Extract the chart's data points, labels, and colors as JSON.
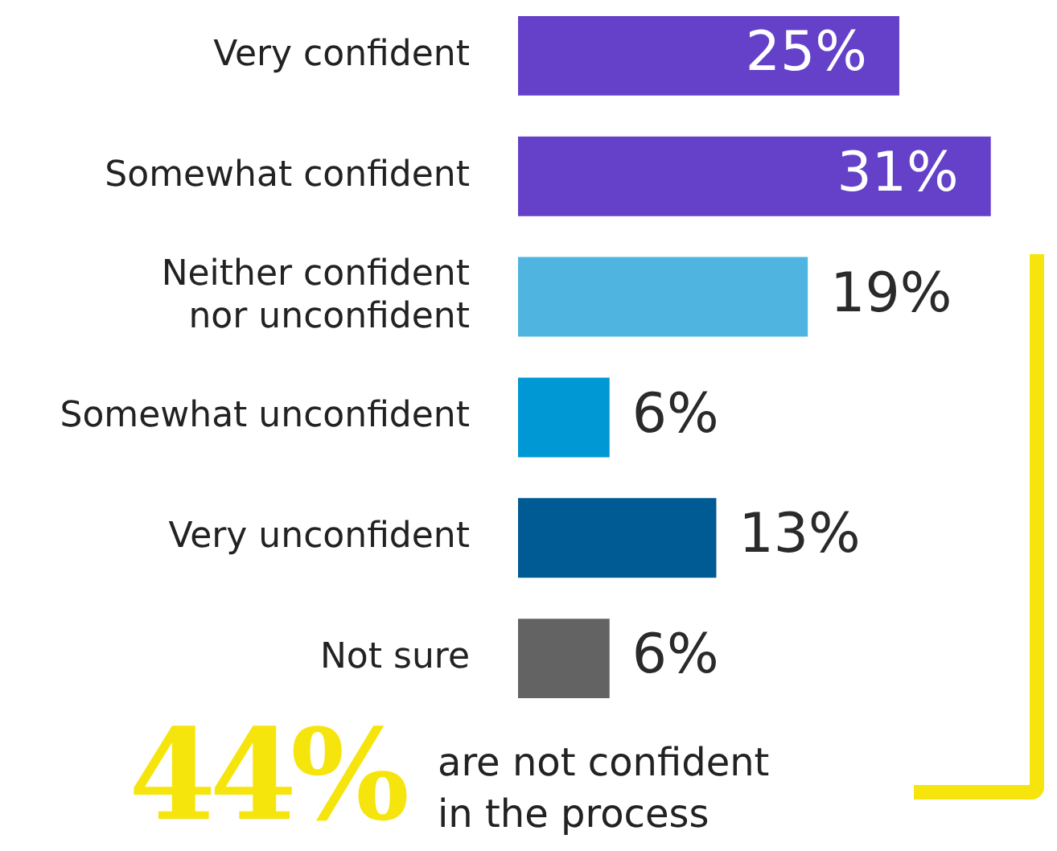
{
  "chart_data": {
    "type": "bar",
    "orientation": "horizontal",
    "categories": [
      "Very confident",
      "Somewhat confident",
      "Neither confident\nnor unconfident",
      "Somewhat unconfident",
      "Very unconfident",
      "Not sure"
    ],
    "values": [
      25,
      31,
      19,
      6,
      13,
      6
    ],
    "colors": [
      "#6441c8",
      "#6441c8",
      "#4fb4e0",
      "#0098d4",
      "#005a94",
      "#636363"
    ],
    "value_labels": [
      "25%",
      "31%",
      "19%",
      "6%",
      "13%",
      "6%"
    ],
    "annotations": [
      "44%",
      "are not confident\nin the process"
    ]
  }
}
